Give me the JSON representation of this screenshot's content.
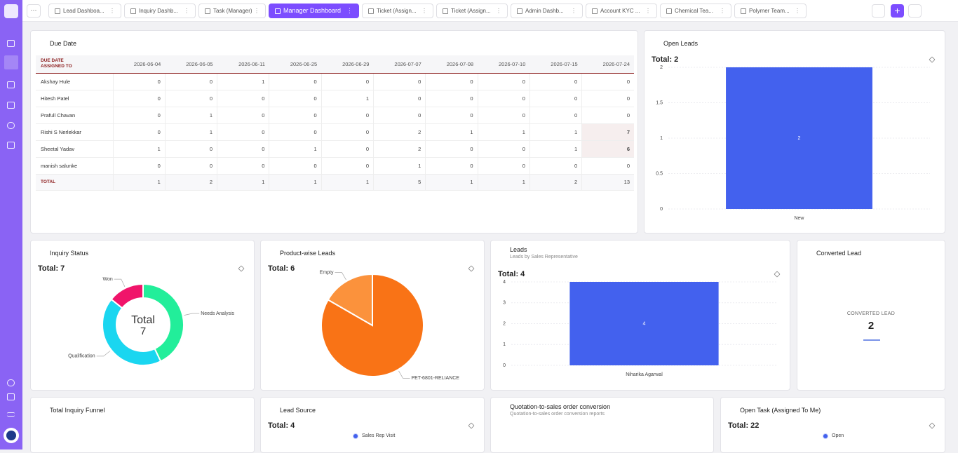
{
  "tabs": [
    {
      "label": "Lead Dashboa..."
    },
    {
      "label": "Inquiry Dashb..."
    },
    {
      "label": "Task (Manager)"
    },
    {
      "label": "Manager Dashboard",
      "active": true
    },
    {
      "label": "Ticket (Assign..."
    },
    {
      "label": "Ticket (Assign..."
    },
    {
      "label": "Admin Dashb..."
    },
    {
      "label": "Account KYC ..."
    },
    {
      "label": "Chemical Tea..."
    },
    {
      "label": "Polymer Team..."
    }
  ],
  "due_date": {
    "title": "Due Date",
    "header_first": "DUE DATE",
    "header_second": "ASSIGNED TO",
    "columns": [
      "2026-06-04",
      "2026-06-05",
      "2026-06-11",
      "2026-06-25",
      "2026-06-29",
      "2026-07-07",
      "2026-07-08",
      "2026-07-10",
      "2026-07-15",
      "2026-07-24"
    ],
    "rows": [
      {
        "name": "Akshay Hule",
        "values": [
          0,
          0,
          1,
          0,
          0,
          0,
          0,
          0,
          0,
          0
        ]
      },
      {
        "name": "Hitesh Patel",
        "values": [
          0,
          0,
          0,
          0,
          1,
          0,
          0,
          0,
          0,
          0
        ]
      },
      {
        "name": "Prafull Chavan",
        "values": [
          0,
          1,
          0,
          0,
          0,
          0,
          0,
          0,
          0,
          0
        ]
      },
      {
        "name": "Rishi S Nerlekkar",
        "values": [
          0,
          1,
          0,
          0,
          0,
          2,
          1,
          1,
          1,
          7
        ]
      },
      {
        "name": "Sheetal Yadav",
        "values": [
          1,
          0,
          0,
          1,
          0,
          2,
          0,
          0,
          1,
          6
        ]
      },
      {
        "name": "manish salunke",
        "values": [
          0,
          0,
          0,
          0,
          0,
          1,
          0,
          0,
          0,
          0
        ]
      }
    ],
    "total": {
      "label": "TOTAL",
      "values": [
        1,
        2,
        1,
        1,
        1,
        5,
        1,
        1,
        2,
        13
      ]
    }
  },
  "open_leads": {
    "title": "Open Leads",
    "total": "Total: 2",
    "chart": {
      "type": "bar",
      "categories": [
        "New"
      ],
      "values": [
        2
      ],
      "color": "#4361ee",
      "ylim": [
        0,
        2
      ],
      "yticks": [
        0,
        0.5,
        1,
        1.5,
        2
      ]
    }
  },
  "inquiry_status": {
    "title": "Inquiry Status",
    "total": "Total: 7",
    "chart": {
      "type": "donut",
      "categories": [
        "Needs Analysis",
        "Qualification",
        "Won"
      ],
      "values": [
        3,
        3,
        1
      ],
      "colors": [
        "#22ee9a",
        "#1ad6f0",
        "#f0146a"
      ],
      "center_label": "Total",
      "center_value": 7
    }
  },
  "product_leads": {
    "title": "Product-wise Leads",
    "total": "Total: 6",
    "chart": {
      "type": "pie",
      "categories": [
        "PET-6801-RELIANCE",
        "Empty"
      ],
      "values": [
        5,
        1
      ],
      "colors": [
        "#f97316",
        "#fb923c"
      ]
    }
  },
  "leads": {
    "title": "Leads",
    "subtitle": "Leads by Sales Representative",
    "total": "Total: 4",
    "chart": {
      "type": "bar",
      "categories": [
        "Niharika Agarwal"
      ],
      "values": [
        4
      ],
      "color": "#4361ee",
      "ylim": [
        0,
        4
      ],
      "yticks": [
        0,
        1,
        2,
        3,
        4
      ]
    }
  },
  "converted_lead": {
    "title": "Converted Lead",
    "label": "CONVERTED LEAD",
    "value": 2
  },
  "total_inquiry_funnel": {
    "title": "Total Inquiry Funnel"
  },
  "lead_source": {
    "title": "Lead Source",
    "total": "Total: 4",
    "legend": [
      "Sales Rep Visit"
    ]
  },
  "quotation": {
    "title": "Quotation-to-sales order conversion",
    "subtitle": "Quotation-to-sales order conversion reports"
  },
  "open_task": {
    "title": "Open Task (Assigned To Me)",
    "total": "Total: 22",
    "legend": [
      "Open"
    ]
  }
}
